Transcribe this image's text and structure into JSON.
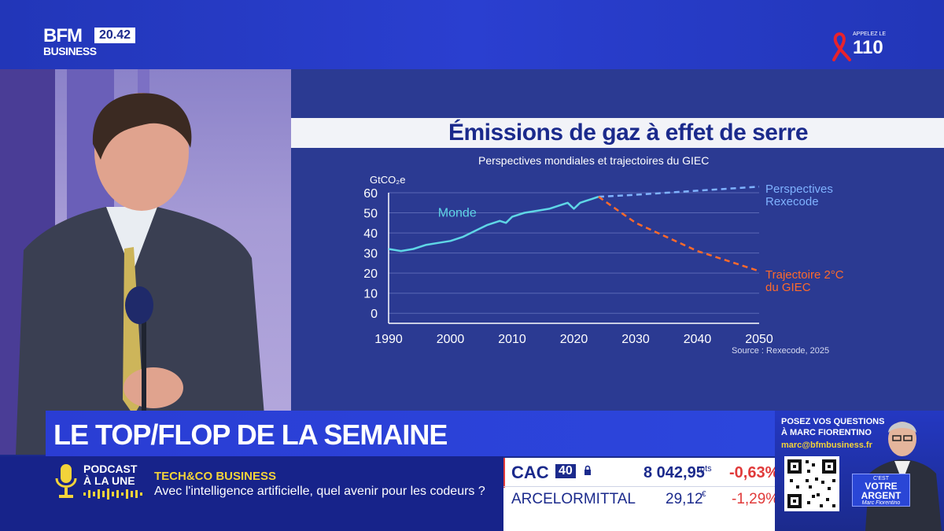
{
  "channel": {
    "name": "BFM",
    "sub": "BUSINESS",
    "clock": "20.42"
  },
  "helpline": {
    "call": "APPELEZ LE",
    "number": "110"
  },
  "chart_title": "Émissions de gaz à effet de serre",
  "chart_subtitle": "Perspectives mondiales et trajectoires du GIEC",
  "chart_source": "Source : Rexecode, 2025",
  "chart_data": {
    "type": "line",
    "title": "Émissions de gaz à effet de serre",
    "subtitle": "Perspectives mondiales et trajectoires du GIEC",
    "ylabel": "GtCO₂e",
    "xlabel": "",
    "xlim": [
      1990,
      2050
    ],
    "ylim": [
      -5,
      60
    ],
    "x_ticks": [
      1990,
      2000,
      2010,
      2020,
      2030,
      2040,
      2050
    ],
    "y_ticks": [
      0,
      10,
      20,
      30,
      40,
      50,
      60
    ],
    "grid": true,
    "legend": "inline labels",
    "colors": {
      "monde": "#5fd6e6",
      "rexecode": "#7fb2ff",
      "giec": "#ff6a2a"
    },
    "series": [
      {
        "name": "Monde",
        "style": "solid",
        "x": [
          1990,
          1992,
          1994,
          1996,
          1998,
          2000,
          2002,
          2004,
          2006,
          2008,
          2009,
          2010,
          2012,
          2014,
          2016,
          2018,
          2019,
          2020,
          2021,
          2022,
          2023,
          2024
        ],
        "y": [
          32,
          31,
          32,
          34,
          35,
          36,
          38,
          41,
          44,
          46,
          45,
          48,
          50,
          51,
          52,
          54,
          55,
          52,
          55,
          56,
          57,
          58
        ]
      },
      {
        "name": "Perspectives Rexecode",
        "style": "dashed",
        "x": [
          2024,
          2030,
          2040,
          2050
        ],
        "y": [
          58,
          59,
          61,
          63
        ]
      },
      {
        "name": "Trajectoire 2°C du GIEC",
        "style": "dashed",
        "x": [
          2024,
          2030,
          2035,
          2040,
          2045,
          2050
        ],
        "y": [
          58,
          45,
          38,
          31,
          26,
          21
        ]
      }
    ],
    "labels": {
      "monde": "Monde",
      "rexecode": [
        "Perspectives",
        "Rexecode"
      ],
      "giec": [
        "Trajectoire 2°C",
        "du GIEC"
      ]
    }
  },
  "headline": "LE TOP/FLOP DE LA SEMAINE",
  "podcast": {
    "line1": "PODCAST",
    "line2": "À LA UNE",
    "show": "TECH&CO BUSINESS",
    "teaser": "Avec l'intelligence artificielle, quel avenir pour les codeurs ?"
  },
  "market": {
    "index": "CAC",
    "index_badge": "40",
    "index_value": "8 042,95",
    "index_unit": "pts",
    "index_change": "-0,63%",
    "stock": "ARCELORMITTAL",
    "stock_value": "29,12",
    "stock_unit": "€",
    "stock_change": "-1,29%"
  },
  "promo": {
    "line1": "POSEZ VOS QUESTIONS",
    "line2": "À MARC FIORENTINO",
    "email": "marc@bfmbusiness.fr",
    "badge1": "C'EST",
    "badge2": "VOTRE ARGENT",
    "badge3": "Marc Fiorentino"
  }
}
